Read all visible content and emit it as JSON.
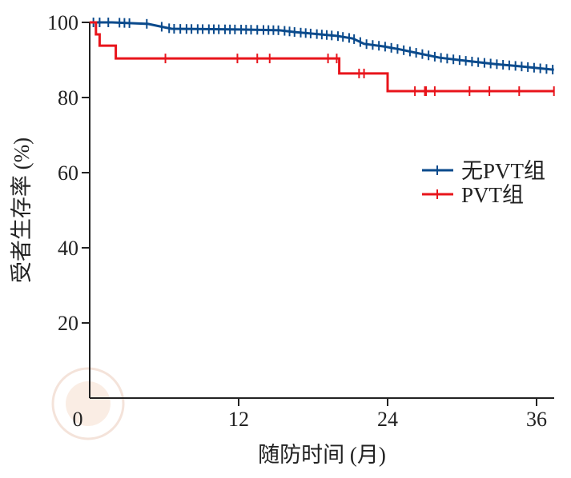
{
  "chart_data": {
    "type": "line",
    "subtype": "kaplan-meier",
    "xlabel": "随防时间 (月)",
    "ylabel": "受者生存率 (%)",
    "xlim": [
      0,
      37.5
    ],
    "ylim": [
      0,
      100
    ],
    "x_ticks": [
      0,
      12,
      24,
      36
    ],
    "y_ticks": [
      20,
      40,
      60,
      80,
      100
    ],
    "grid": false,
    "legend_position": "right",
    "series": [
      {
        "name": "无PVT组",
        "color": "#0a4a8c",
        "points": [
          [
            0,
            100
          ],
          [
            1.8,
            100
          ],
          [
            4.7,
            99.6
          ],
          [
            6.0,
            98.7
          ],
          [
            6.6,
            98.3
          ],
          [
            12.1,
            98.1
          ],
          [
            15.3,
            97.9
          ],
          [
            16.6,
            97.4
          ],
          [
            19.9,
            96.4
          ],
          [
            21.2,
            95.7
          ],
          [
            22.1,
            94.3
          ],
          [
            23.7,
            93.6
          ],
          [
            25.0,
            92.8
          ],
          [
            26.3,
            91.9
          ],
          [
            28.2,
            90.6
          ],
          [
            30.2,
            89.8
          ],
          [
            32.7,
            88.9
          ],
          [
            34.7,
            88.3
          ],
          [
            37.4,
            87.4
          ]
        ],
        "censored": [
          0.3,
          0.8,
          1.5,
          2.4,
          2.8,
          3.2,
          4.6,
          5.8,
          6.4,
          6.8,
          7.3,
          7.8,
          8.2,
          8.7,
          9.1,
          9.6,
          10.0,
          10.4,
          10.9,
          11.3,
          11.7,
          12.2,
          12.6,
          13.0,
          13.5,
          14.0,
          14.4,
          14.8,
          15.2,
          15.7,
          16.1,
          16.5,
          17.0,
          17.4,
          17.8,
          18.3,
          18.7,
          19.1,
          19.5,
          20.0,
          20.4,
          20.9,
          21.3,
          21.8,
          22.3,
          22.8,
          23.3,
          23.8,
          24.3,
          24.8,
          25.3,
          25.8,
          26.3,
          26.8,
          27.3,
          27.8,
          28.3,
          28.8,
          29.3,
          29.8,
          30.3,
          30.8,
          31.3,
          31.8,
          32.3,
          32.8,
          33.3,
          33.8,
          34.3,
          34.8,
          35.3,
          35.8,
          36.3,
          36.8,
          37.3
        ]
      },
      {
        "name": "PVT组",
        "color": "#e8141b",
        "points": [
          [
            0,
            100
          ],
          [
            0.5,
            100
          ],
          [
            0.5,
            96.8
          ],
          [
            0.8,
            96.8
          ],
          [
            0.8,
            93.8
          ],
          [
            2.1,
            93.8
          ],
          [
            2.1,
            90.4
          ],
          [
            20.1,
            90.4
          ],
          [
            20.1,
            86.4
          ],
          [
            24.0,
            86.4
          ],
          [
            24.0,
            81.7
          ],
          [
            37.4,
            81.7
          ]
        ],
        "step": false,
        "censored": [
          6.1,
          11.9,
          13.5,
          14.5,
          19.2,
          19.9,
          21.7,
          22.1,
          26.2,
          27.0,
          27.1,
          27.8,
          30.6,
          32.2,
          34.6,
          37.4
        ]
      }
    ]
  }
}
